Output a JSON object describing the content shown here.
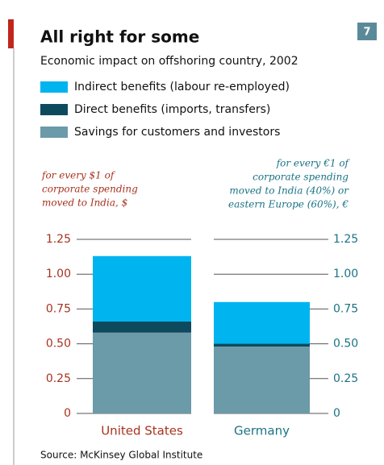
{
  "chart_data": {
    "type": "stacked_bar",
    "badge": "7",
    "title": "All right for some",
    "subtitle": "Economic impact on offshoring country, 2002",
    "left_axis_label": [
      "for every $1 of",
      "corporate spending",
      "moved to India, $"
    ],
    "right_axis_label": [
      "for every €1 of",
      "corporate spending",
      "moved to India (40%) or",
      "eastern Europe (60%), €"
    ],
    "categories": [
      "United States",
      "Germany"
    ],
    "series": [
      {
        "name": "Indirect benefits (labour re-employed)",
        "color": "#00b4ef",
        "values": [
          0.47,
          0.3
        ]
      },
      {
        "name": "Direct benefits (imports, transfers)",
        "color": "#0d4a5e",
        "values": [
          0.08,
          0.02
        ]
      },
      {
        "name": "Savings for customers and investors",
        "color": "#6b9aa8",
        "values": [
          0.58,
          0.48
        ]
      }
    ],
    "ylim": [
      0,
      1.25
    ],
    "yticks": [
      0,
      {
        "value": 0.25,
        "label": "0.25"
      },
      {
        "value": 0.5,
        "label": "0.50"
      },
      {
        "value": 0.75,
        "label": "0.75"
      },
      {
        "value": 1,
        "label": "1.00"
      },
      {
        "value": 1.25,
        "label": "1.25"
      }
    ],
    "y2lim": [
      0,
      1.25
    ],
    "y2ticks": [
      0,
      {
        "value": 0.25,
        "label": "0.25"
      },
      {
        "value": 0.5,
        "label": "0.50"
      },
      {
        "value": 0.75,
        "label": "0.75"
      },
      {
        "value": 1,
        "label": "1.00"
      },
      {
        "value": 1.25,
        "label": "1.25"
      }
    ],
    "source": "Source: McKinsey Global Institute"
  }
}
